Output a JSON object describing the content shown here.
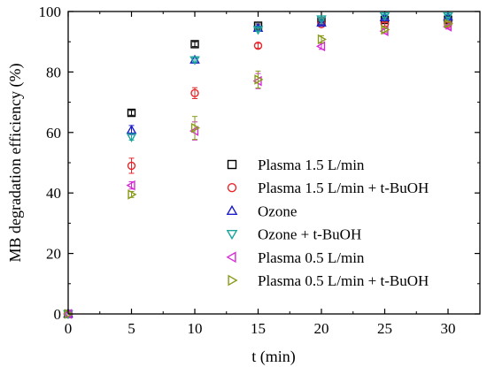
{
  "chart_data": {
    "type": "scatter",
    "xlabel": "t (min)",
    "ylabel": "MB degradation efficiency (%)",
    "xlim": [
      0,
      32
    ],
    "ylim": [
      0,
      100
    ],
    "x_ticks": [
      "0",
      "5",
      "10",
      "15",
      "20",
      "25",
      "30"
    ],
    "y_ticks": [
      "0",
      "20",
      "40",
      "60",
      "80",
      "100"
    ],
    "legend_position": "lower-right",
    "grid": false,
    "series": [
      {
        "name": "Plasma 1.5 L/min",
        "marker": "square",
        "color": "#000000",
        "x": [
          0,
          5,
          10,
          15,
          20,
          25,
          30
        ],
        "y": [
          0,
          66.5,
          89.2,
          95.3,
          96.8,
          97.2,
          97.3
        ],
        "err": [
          0,
          0.8,
          0.8,
          0.6,
          0.6,
          0.5,
          0.5
        ]
      },
      {
        "name": "Plasma 1.5 L/min + t-BuOH",
        "marker": "circle",
        "color": "#e8262a",
        "x": [
          0,
          5,
          10,
          15,
          20,
          25,
          30
        ],
        "y": [
          0,
          49.0,
          73.0,
          88.7,
          95.8,
          95.8,
          95.8
        ],
        "err": [
          0,
          2.5,
          1.8,
          0.8,
          0.6,
          0.6,
          0.6
        ]
      },
      {
        "name": "Ozone",
        "marker": "triangle-up",
        "color": "#1c1cc8",
        "x": [
          0,
          5,
          10,
          15,
          20,
          25,
          30
        ],
        "y": [
          0,
          60.8,
          84.0,
          94.5,
          96.2,
          98.0,
          98.2
        ],
        "err": [
          0,
          1.5,
          1.0,
          0.8,
          0.6,
          0.6,
          0.6
        ]
      },
      {
        "name": "Ozone + t-BuOH",
        "marker": "triangle-down",
        "color": "#1aa59b",
        "x": [
          0,
          5,
          10,
          15,
          20,
          25,
          30
        ],
        "y": [
          0,
          58.5,
          84.0,
          94.0,
          97.5,
          98.5,
          98.5
        ],
        "err": [
          0,
          1.0,
          0.8,
          0.6,
          0.5,
          0.5,
          0.5
        ]
      },
      {
        "name": "Plasma 0.5 L/min",
        "marker": "triangle-left",
        "color": "#d62ad6",
        "x": [
          0,
          5,
          10,
          15,
          20,
          25,
          30
        ],
        "y": [
          0,
          42.5,
          60.5,
          77.0,
          88.5,
          93.5,
          95.0
        ],
        "err": [
          0,
          1.2,
          3.0,
          2.5,
          1.0,
          0.8,
          0.8
        ]
      },
      {
        "name": "Plasma 0.5 L/min + t-BuOH",
        "marker": "triangle-right",
        "color": "#8a9a1a",
        "x": [
          0,
          5,
          10,
          15,
          20,
          25,
          30
        ],
        "y": [
          0,
          39.5,
          61.5,
          77.5,
          90.8,
          94.0,
          96.0
        ],
        "err": [
          0,
          1.0,
          3.8,
          2.8,
          1.2,
          0.8,
          0.8
        ]
      }
    ]
  }
}
